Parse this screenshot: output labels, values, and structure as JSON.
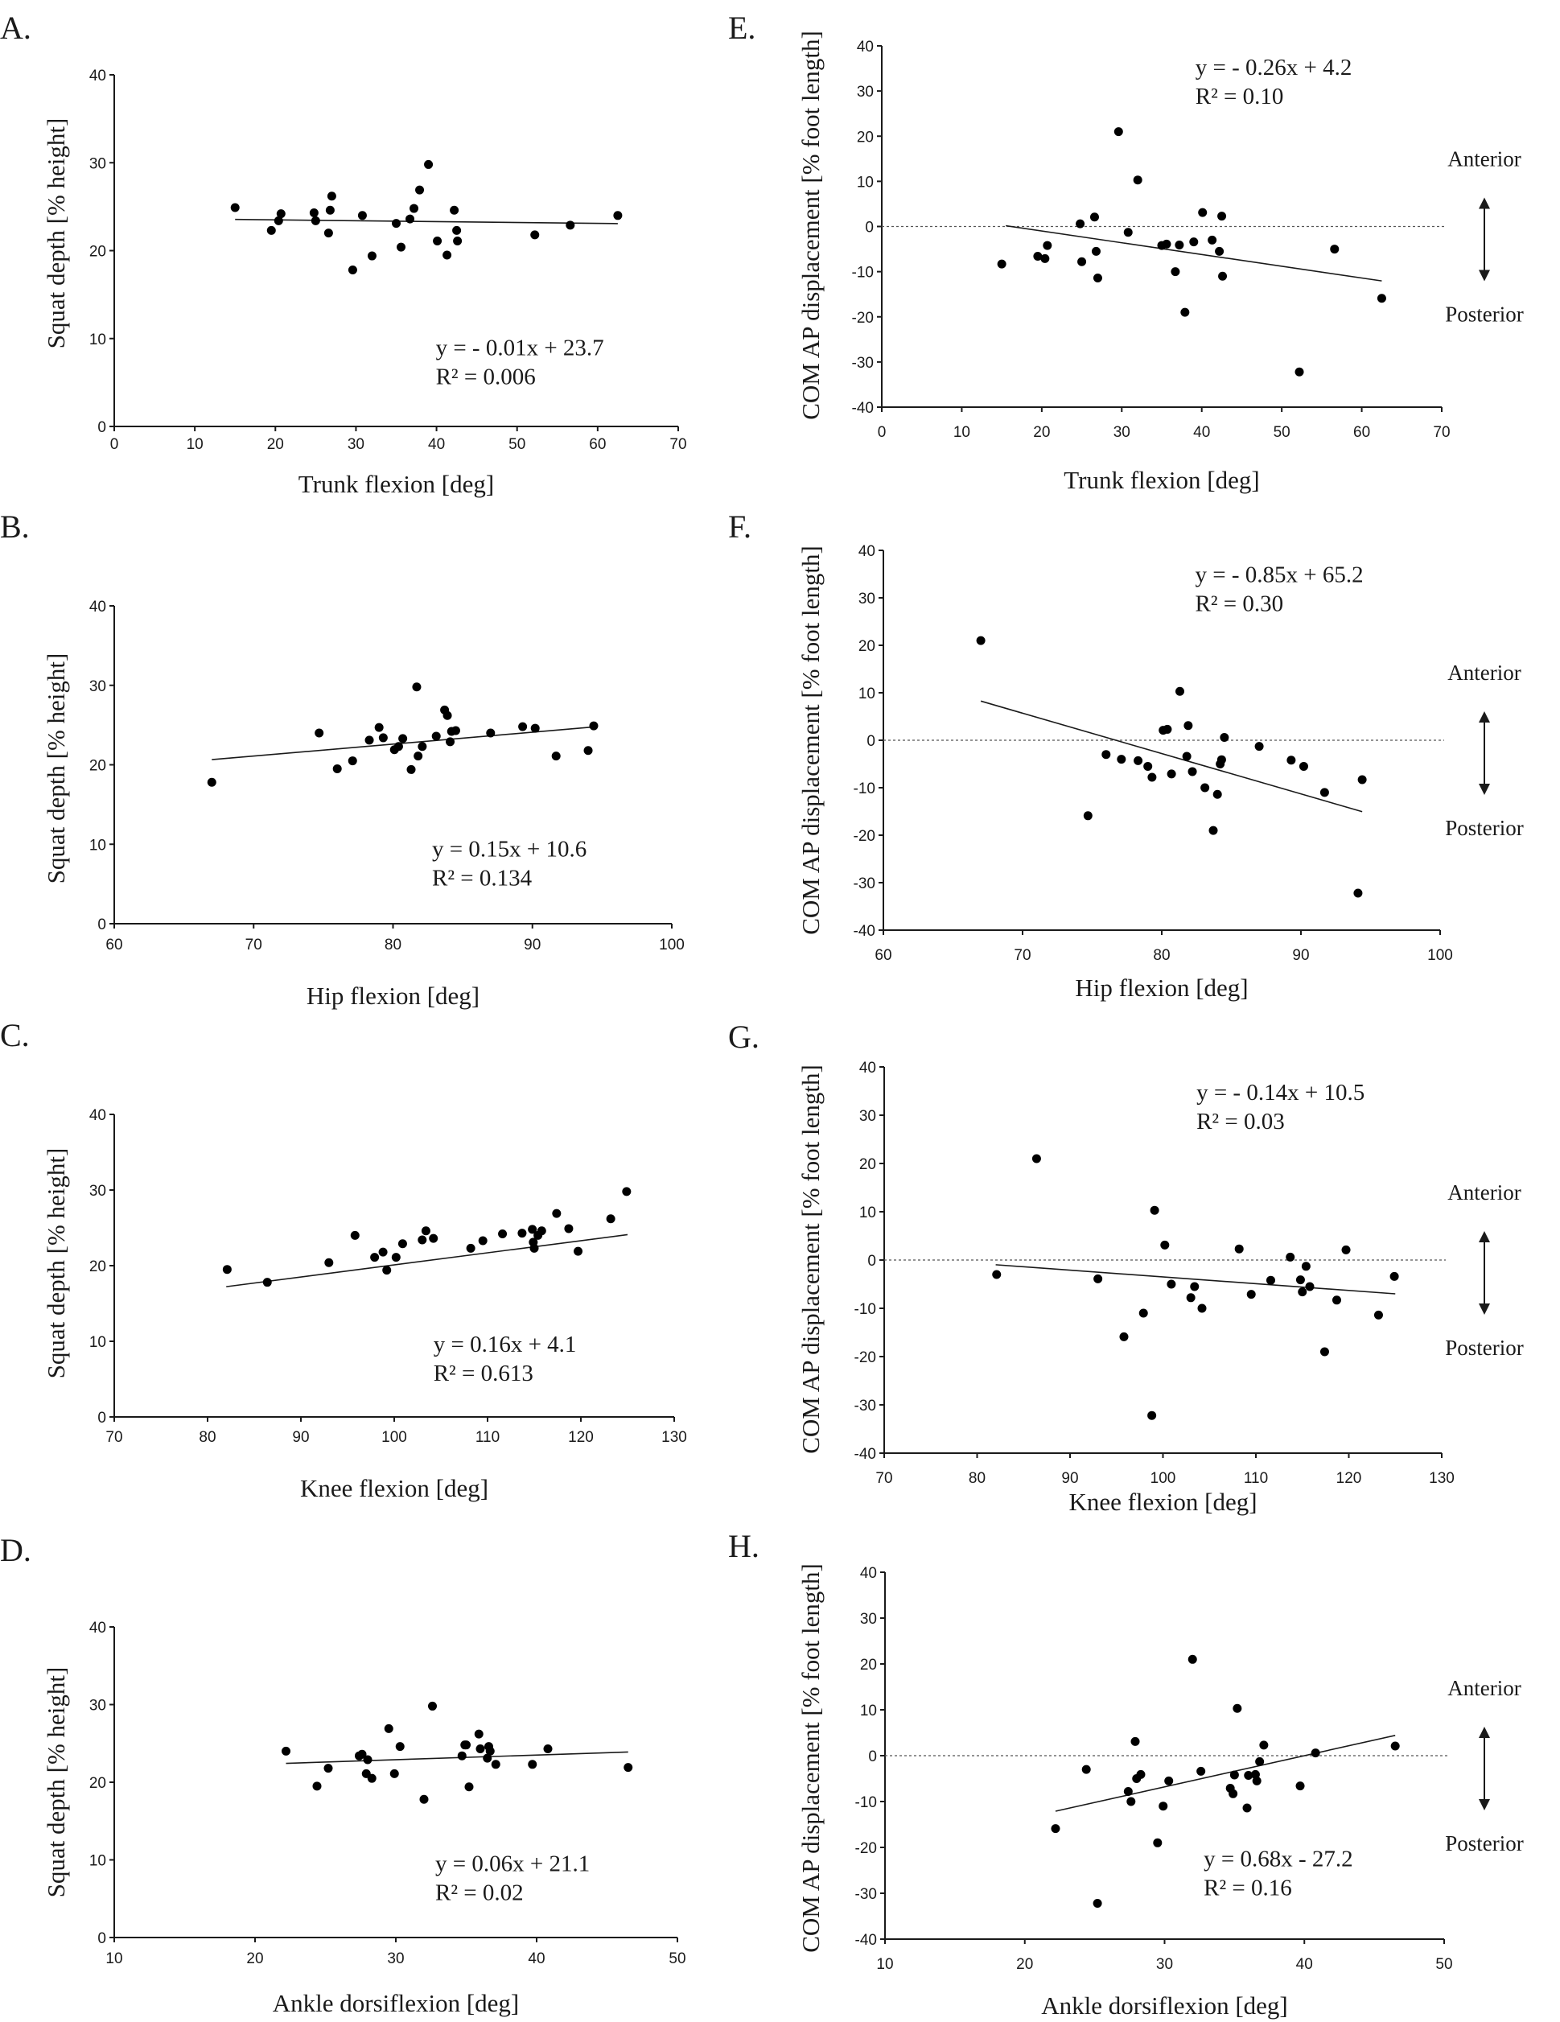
{
  "figure": {
    "direction_labels": {
      "anterior": "Anterior",
      "posterior": "Posterior"
    }
  },
  "chart_data": [
    {
      "id": "A",
      "panel_label": "A.",
      "type": "scatter",
      "xlabel": "Trunk flexion [deg]",
      "ylabel": "Squat depth [% height]",
      "xlim": [
        0,
        70
      ],
      "ylim": [
        0,
        40
      ],
      "xticks": [
        0,
        10,
        20,
        30,
        40,
        50,
        60,
        70
      ],
      "yticks": [
        0,
        10,
        20,
        30,
        40
      ],
      "zero_line": false,
      "grid": false,
      "direction_arrow": false,
      "equation": "y = - 0.01x + 23.7",
      "r2": "R² = 0.006",
      "annotation_position": "bottom-right",
      "fit": {
        "slope": -0.01,
        "intercept": 23.7,
        "x_range": [
          15,
          62.5
        ]
      },
      "points": [
        [
          15,
          24.9
        ],
        [
          19.5,
          22.3
        ],
        [
          20.4,
          23.4
        ],
        [
          20.7,
          24.2
        ],
        [
          24.8,
          24.3
        ],
        [
          25,
          23.4
        ],
        [
          26.6,
          22
        ],
        [
          26.8,
          24.6
        ],
        [
          27,
          26.2
        ],
        [
          29.6,
          17.8
        ],
        [
          30.8,
          24
        ],
        [
          32,
          19.4
        ],
        [
          35,
          23.1
        ],
        [
          35.6,
          20.4
        ],
        [
          36.7,
          23.6
        ],
        [
          37.2,
          24.8
        ],
        [
          37.9,
          26.9
        ],
        [
          39,
          29.8
        ],
        [
          40.1,
          21.1
        ],
        [
          41.3,
          19.5
        ],
        [
          42.2,
          24.6
        ],
        [
          42.5,
          22.3
        ],
        [
          42.6,
          21.1
        ],
        [
          52.2,
          21.8
        ],
        [
          56.6,
          22.9
        ],
        [
          62.5,
          24
        ]
      ]
    },
    {
      "id": "B",
      "panel_label": "B.",
      "type": "scatter",
      "xlabel": "Hip flexion [deg]",
      "ylabel": "Squat depth [% height]",
      "xlim": [
        60,
        100
      ],
      "ylim": [
        0,
        40
      ],
      "xticks": [
        60,
        70,
        80,
        90,
        100
      ],
      "yticks": [
        0,
        10,
        20,
        30,
        40
      ],
      "zero_line": false,
      "grid": false,
      "direction_arrow": false,
      "equation": "y = 0.15x + 10.6",
      "r2": "R² = 0.134",
      "annotation_position": "bottom-right",
      "fit": {
        "slope": 0.15,
        "intercept": 10.6,
        "x_range": [
          67,
          94.5
        ]
      },
      "points": [
        [
          67,
          17.8
        ],
        [
          74.7,
          24
        ],
        [
          76,
          19.5
        ],
        [
          77.1,
          20.5
        ],
        [
          78.3,
          23.1
        ],
        [
          79,
          24.7
        ],
        [
          79.3,
          23.4
        ],
        [
          80.1,
          21.9
        ],
        [
          80.4,
          22.3
        ],
        [
          80.7,
          23.3
        ],
        [
          81.3,
          19.4
        ],
        [
          81.7,
          29.8
        ],
        [
          81.8,
          21.1
        ],
        [
          82.1,
          22.3
        ],
        [
          83.1,
          23.6
        ],
        [
          83.7,
          26.9
        ],
        [
          83.9,
          26.2
        ],
        [
          84.1,
          22.9
        ],
        [
          84.2,
          24.2
        ],
        [
          84.5,
          24.3
        ],
        [
          87,
          24
        ],
        [
          89.3,
          24.8
        ],
        [
          90.2,
          24.6
        ],
        [
          91.7,
          21.1
        ],
        [
          94,
          21.8
        ],
        [
          94.4,
          24.9
        ]
      ]
    },
    {
      "id": "C",
      "panel_label": "C.",
      "type": "scatter",
      "xlabel": "Knee flexion [deg]",
      "ylabel": "Squat depth [% height]",
      "xlim": [
        70,
        130
      ],
      "ylim": [
        0,
        40
      ],
      "xticks": [
        70,
        80,
        90,
        100,
        110,
        120,
        130
      ],
      "yticks": [
        0,
        10,
        20,
        30,
        40
      ],
      "zero_line": false,
      "grid": false,
      "direction_arrow": false,
      "equation": "y = 0.16x + 4.1",
      "r2": "R² = 0.613",
      "annotation_position": "bottom-right",
      "fit": {
        "slope": 0.16,
        "intercept": 4.1,
        "x_range": [
          82,
          125
        ]
      },
      "points": [
        [
          82.1,
          19.5
        ],
        [
          86.4,
          17.8
        ],
        [
          93,
          20.4
        ],
        [
          95.8,
          24
        ],
        [
          97.9,
          21.1
        ],
        [
          98.8,
          21.8
        ],
        [
          99.2,
          19.4
        ],
        [
          100.2,
          21.1
        ],
        [
          100.9,
          22.9
        ],
        [
          103,
          23.4
        ],
        [
          103.4,
          24.6
        ],
        [
          104.2,
          23.6
        ],
        [
          108.2,
          22.3
        ],
        [
          109.5,
          23.3
        ],
        [
          111.6,
          24.2
        ],
        [
          113.7,
          24.3
        ],
        [
          114.8,
          24.8
        ],
        [
          114.9,
          23.1
        ],
        [
          115,
          22.3
        ],
        [
          115.4,
          24
        ],
        [
          115.8,
          24.6
        ],
        [
          117.4,
          26.9
        ],
        [
          118.7,
          24.9
        ],
        [
          119.7,
          21.9
        ],
        [
          123.2,
          26.2
        ],
        [
          124.9,
          29.8
        ]
      ]
    },
    {
      "id": "D",
      "panel_label": "D.",
      "type": "scatter",
      "xlabel": "Ankle dorsiflexion [deg]",
      "ylabel": "Squat depth [% height]",
      "xlim": [
        10,
        50
      ],
      "ylim": [
        0,
        40
      ],
      "xticks": [
        10,
        20,
        30,
        40,
        50
      ],
      "yticks": [
        0,
        10,
        20,
        30,
        40
      ],
      "zero_line": false,
      "grid": false,
      "direction_arrow": false,
      "equation": "y = 0.06x + 21.1",
      "r2": "R² = 0.02",
      "annotation_position": "bottom-right",
      "fit": {
        "slope": 0.06,
        "intercept": 21.1,
        "x_range": [
          22.2,
          46.5
        ]
      },
      "points": [
        [
          22.2,
          24
        ],
        [
          24.4,
          19.5
        ],
        [
          25.2,
          21.8
        ],
        [
          27.4,
          23.4
        ],
        [
          27.6,
          23.6
        ],
        [
          27.9,
          21.1
        ],
        [
          28,
          22.9
        ],
        [
          28.3,
          20.5
        ],
        [
          29.5,
          26.9
        ],
        [
          29.9,
          21.1
        ],
        [
          30.3,
          24.6
        ],
        [
          32,
          17.8
        ],
        [
          32.6,
          29.8
        ],
        [
          34.7,
          23.4
        ],
        [
          34.9,
          24.8
        ],
        [
          35,
          24.8
        ],
        [
          35.2,
          19.4
        ],
        [
          35.9,
          26.2
        ],
        [
          36,
          24.3
        ],
        [
          36.5,
          23.1
        ],
        [
          36.6,
          24.6
        ],
        [
          36.7,
          24
        ],
        [
          37.1,
          22.3
        ],
        [
          39.7,
          22.3
        ],
        [
          40.8,
          24.3
        ],
        [
          46.5,
          21.9
        ]
      ]
    },
    {
      "id": "E",
      "panel_label": "E.",
      "type": "scatter",
      "xlabel": "Trunk flexion [deg]",
      "ylabel": "COM AP displacement  [% foot length]",
      "xlim": [
        0,
        70
      ],
      "ylim": [
        -40,
        40
      ],
      "xticks": [
        0,
        10,
        20,
        30,
        40,
        50,
        60,
        70
      ],
      "yticks": [
        -40,
        -30,
        -20,
        -10,
        0,
        10,
        20,
        30,
        40
      ],
      "zero_line": true,
      "grid": false,
      "direction_arrow": true,
      "equation": "y = - 0.26x + 4.2",
      "r2": "R² = 0.10",
      "annotation_position": "top-right",
      "fit": {
        "slope": -0.26,
        "intercept": 4.2,
        "x_range": [
          15.5,
          62.5
        ]
      },
      "points": [
        [
          15,
          -8.3
        ],
        [
          19.5,
          -6.6
        ],
        [
          20.4,
          -7.1
        ],
        [
          20.7,
          -4.2
        ],
        [
          24.8,
          0.6
        ],
        [
          25,
          -7.8
        ],
        [
          26.6,
          2.1
        ],
        [
          26.8,
          -5.5
        ],
        [
          27,
          -11.4
        ],
        [
          29.6,
          21
        ],
        [
          30.8,
          -1.3
        ],
        [
          32,
          10.3
        ],
        [
          35,
          -4.2
        ],
        [
          35.6,
          -3.9
        ],
        [
          36.7,
          -10
        ],
        [
          37.2,
          -4.1
        ],
        [
          37.9,
          -19
        ],
        [
          39,
          -3.4
        ],
        [
          40.1,
          3.1
        ],
        [
          41.3,
          -3
        ],
        [
          42.2,
          -5.5
        ],
        [
          42.5,
          2.3
        ],
        [
          42.6,
          -11
        ],
        [
          52.2,
          -32.2
        ],
        [
          56.6,
          -5
        ],
        [
          62.5,
          -15.9
        ]
      ]
    },
    {
      "id": "F",
      "panel_label": "F.",
      "type": "scatter",
      "xlabel": "Hip flexion [deg]",
      "ylabel": "COM AP displacement  [% foot length]",
      "xlim": [
        60,
        100
      ],
      "ylim": [
        -40,
        40
      ],
      "xticks": [
        60,
        70,
        80,
        90,
        100
      ],
      "yticks": [
        -40,
        -30,
        -20,
        -10,
        0,
        10,
        20,
        30,
        40
      ],
      "zero_line": true,
      "grid": false,
      "direction_arrow": true,
      "equation": "y = - 0.85x + 65.2",
      "r2": "R² = 0.30",
      "annotation_position": "top-right",
      "fit": {
        "slope": -0.85,
        "intercept": 65.2,
        "x_range": [
          67,
          94.4
        ]
      },
      "points": [
        [
          67,
          21
        ],
        [
          74.7,
          -15.9
        ],
        [
          76,
          -3
        ],
        [
          77.1,
          -4
        ],
        [
          78.3,
          -4.3
        ],
        [
          79,
          -5.5
        ],
        [
          79.3,
          -7.8
        ],
        [
          80.1,
          2.1
        ],
        [
          80.4,
          2.3
        ],
        [
          80.7,
          -7.1
        ],
        [
          81.3,
          10.3
        ],
        [
          81.8,
          -3.4
        ],
        [
          81.9,
          3.1
        ],
        [
          82.2,
          -6.6
        ],
        [
          83.1,
          -10
        ],
        [
          83.7,
          -19
        ],
        [
          84,
          -11.4
        ],
        [
          84.2,
          -5
        ],
        [
          84.3,
          -4.1
        ],
        [
          84.5,
          0.6
        ],
        [
          87,
          -1.3
        ],
        [
          89.3,
          -4.2
        ],
        [
          90.2,
          -5.5
        ],
        [
          91.7,
          -11
        ],
        [
          94.1,
          -32.2
        ],
        [
          94.4,
          -8.3
        ]
      ]
    },
    {
      "id": "G",
      "panel_label": "G.",
      "type": "scatter",
      "xlabel": "Knee flexion [deg]",
      "ylabel": "COM AP displacement  [% foot length]",
      "xlim": [
        70,
        130
      ],
      "ylim": [
        -40,
        40
      ],
      "xticks": [
        70,
        80,
        90,
        100,
        110,
        120,
        130
      ],
      "yticks": [
        -40,
        -30,
        -20,
        -10,
        0,
        10,
        20,
        30,
        40
      ],
      "zero_line": true,
      "grid": false,
      "direction_arrow": true,
      "equation": "y = - 0.14x + 10.5",
      "r2": "R² = 0.03",
      "annotation_position": "top-right",
      "fit": {
        "slope": -0.14,
        "intercept": 10.5,
        "x_range": [
          82,
          125
        ]
      },
      "points": [
        [
          82.1,
          -3
        ],
        [
          86.4,
          21
        ],
        [
          93,
          -3.9
        ],
        [
          95.8,
          -15.9
        ],
        [
          97.9,
          -11
        ],
        [
          98.8,
          -32.2
        ],
        [
          99.1,
          10.3
        ],
        [
          100.2,
          3.1
        ],
        [
          100.9,
          -5
        ],
        [
          103,
          -7.8
        ],
        [
          103.4,
          -5.5
        ],
        [
          104.2,
          -10
        ],
        [
          108.2,
          2.3
        ],
        [
          109.5,
          -7.1
        ],
        [
          111.6,
          -4.2
        ],
        [
          113.7,
          0.6
        ],
        [
          114.8,
          -4.1
        ],
        [
          115,
          -6.6
        ],
        [
          115.4,
          -1.3
        ],
        [
          115.8,
          -5.5
        ],
        [
          117.4,
          -19
        ],
        [
          118.7,
          -8.3
        ],
        [
          119.7,
          2.1
        ],
        [
          123.2,
          -11.4
        ],
        [
          124.9,
          -3.4
        ]
      ]
    },
    {
      "id": "H",
      "panel_label": "H.",
      "type": "scatter",
      "xlabel": "Ankle dorsiflexion [deg]",
      "ylabel": "COM AP displacement  [% foot length]",
      "xlim": [
        10,
        50
      ],
      "ylim": [
        -40,
        40
      ],
      "xticks": [
        10,
        20,
        30,
        40,
        50
      ],
      "yticks": [
        -40,
        -30,
        -20,
        -10,
        0,
        10,
        20,
        30,
        40
      ],
      "zero_line": true,
      "grid": false,
      "direction_arrow": true,
      "equation": "y = 0.68x - 27.2",
      "r2": "R² = 0.16",
      "annotation_position": "bottom-right",
      "fit": {
        "slope": 0.68,
        "intercept": -27.2,
        "x_range": [
          22.2,
          46.5
        ]
      },
      "points": [
        [
          22.2,
          -15.9
        ],
        [
          24.4,
          -3
        ],
        [
          25.2,
          -32.2
        ],
        [
          27.4,
          -7.8
        ],
        [
          27.6,
          -10
        ],
        [
          27.9,
          3.1
        ],
        [
          28,
          -5
        ],
        [
          28.3,
          -4.1
        ],
        [
          29.5,
          -19
        ],
        [
          29.9,
          -11
        ],
        [
          30.3,
          -5.5
        ],
        [
          32,
          21
        ],
        [
          32.6,
          -3.4
        ],
        [
          34.7,
          -7.1
        ],
        [
          34.9,
          -8.3
        ],
        [
          35,
          -4.2
        ],
        [
          35.2,
          10.3
        ],
        [
          35.9,
          -11.4
        ],
        [
          36,
          -4.3
        ],
        [
          36.5,
          -4.1
        ],
        [
          36.6,
          -5.5
        ],
        [
          36.8,
          -1.3
        ],
        [
          37.1,
          2.3
        ],
        [
          39.7,
          -6.6
        ],
        [
          40.8,
          0.6
        ],
        [
          46.5,
          2.1
        ]
      ]
    }
  ]
}
